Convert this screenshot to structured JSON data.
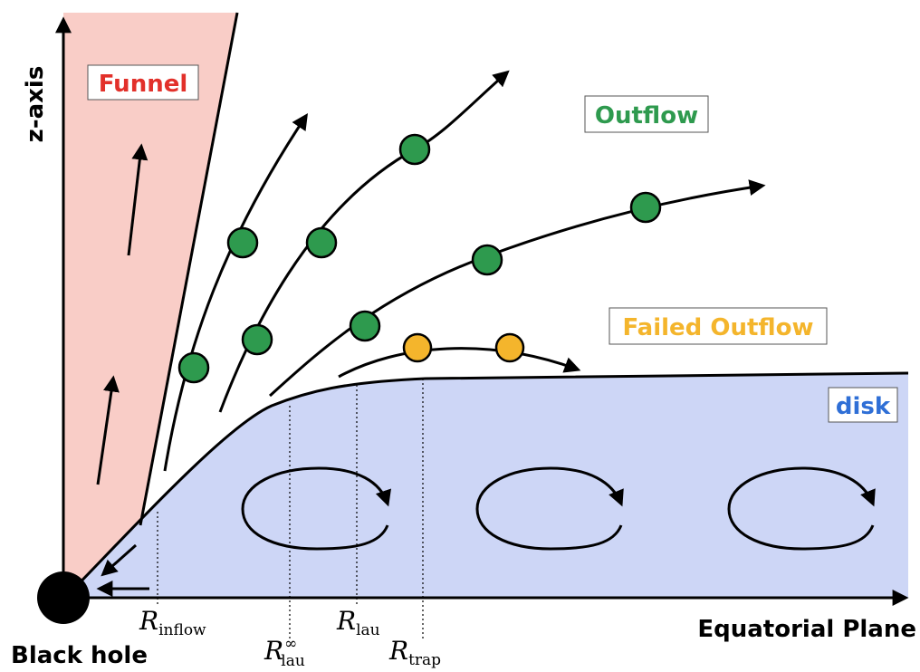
{
  "axes": {
    "vertical_label": "z-axis",
    "horizontal_label": "Equatorial Plane"
  },
  "labels": {
    "black_hole": "Black hole",
    "funnel": "Funnel",
    "outflow": "Outflow",
    "failed_outflow": "Failed Outflow",
    "disk": "disk"
  },
  "radii": {
    "inflow": {
      "symbol": "R",
      "subscript": "inflow",
      "superscript": ""
    },
    "lau_inf": {
      "symbol": "R",
      "subscript": "lau",
      "superscript": "∞"
    },
    "lau": {
      "symbol": "R",
      "subscript": "lau",
      "superscript": ""
    },
    "trap": {
      "symbol": "R",
      "subscript": "trap",
      "superscript": ""
    }
  },
  "colors": {
    "funnel_fill": "#f9cdc7",
    "disk_fill": "#cdd6f6",
    "outflow_particle": "#2e9a4e",
    "failed_particle": "#f4b52c",
    "funnel_text": "#e2302a",
    "outflow_text": "#2e9a4e",
    "failed_text": "#f4b52c",
    "disk_text": "#2f6fd6",
    "ink": "#000000"
  }
}
